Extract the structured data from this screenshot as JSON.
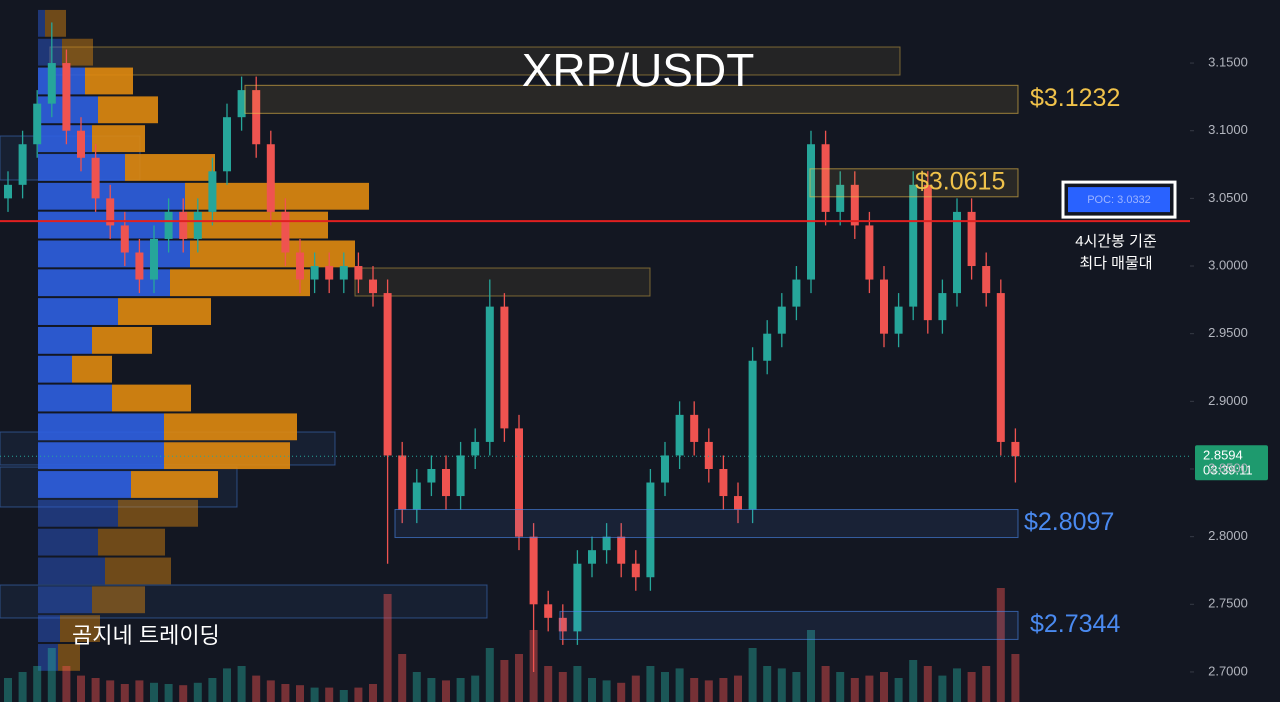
{
  "chart_data": {
    "type": "candlestick",
    "title": "XRP/USDT",
    "watermark": "곰지네 트레이딩",
    "up_color": "#26a69a",
    "down_color": "#ef5350",
    "ylim": [
      2.6778,
      3.1966
    ],
    "yticks": [
      {
        "value": 3.15,
        "label": "3.1500"
      },
      {
        "value": 3.1,
        "label": "3.1000"
      },
      {
        "value": 3.05,
        "label": "3.0500"
      },
      {
        "value": 3.0,
        "label": "3.0000"
      },
      {
        "value": 2.95,
        "label": "2.9500"
      },
      {
        "value": 2.9,
        "label": "2.9000"
      },
      {
        "value": 2.85,
        "label": "2.8500"
      },
      {
        "value": 2.8,
        "label": "2.8000"
      },
      {
        "value": 2.75,
        "label": "2.7500"
      },
      {
        "value": 2.7,
        "label": "2.7000"
      }
    ],
    "candles": {
      "open": [
        3.05,
        3.06,
        3.09,
        3.12,
        3.15,
        3.1,
        3.08,
        3.05,
        3.03,
        3.01,
        2.99,
        3.02,
        3.04,
        3.02,
        3.04,
        3.07,
        3.11,
        3.13,
        3.09,
        3.04,
        3.01,
        2.99,
        3.0,
        2.99,
        3.0,
        2.99,
        2.98,
        2.86,
        2.82,
        2.84,
        2.85,
        2.83,
        2.86,
        2.87,
        2.97,
        2.88,
        2.8,
        2.75,
        2.74,
        2.73,
        2.78,
        2.79,
        2.8,
        2.78,
        2.77,
        2.84,
        2.86,
        2.89,
        2.87,
        2.85,
        2.83,
        2.82,
        2.93,
        2.95,
        2.97,
        2.99,
        3.09,
        3.04,
        3.06,
        3.03,
        2.99,
        2.95,
        2.97,
        3.06,
        2.96,
        2.98,
        3.04,
        3.0,
        2.98,
        2.87
      ],
      "high": [
        3.07,
        3.1,
        3.13,
        3.18,
        3.16,
        3.11,
        3.09,
        3.06,
        3.04,
        3.02,
        3.03,
        3.05,
        3.05,
        3.05,
        3.08,
        3.12,
        3.14,
        3.14,
        3.1,
        3.05,
        3.02,
        3.01,
        3.01,
        3.01,
        3.01,
        3.0,
        2.99,
        2.87,
        2.85,
        2.86,
        2.86,
        2.87,
        2.88,
        2.99,
        2.98,
        2.89,
        2.81,
        2.76,
        2.75,
        2.79,
        2.8,
        2.81,
        2.81,
        2.79,
        2.85,
        2.87,
        2.9,
        2.9,
        2.88,
        2.86,
        2.84,
        2.94,
        2.96,
        2.98,
        3.0,
        3.1,
        3.1,
        3.07,
        3.07,
        3.04,
        3.0,
        2.98,
        3.07,
        3.07,
        2.99,
        3.05,
        3.05,
        3.01,
        2.99,
        2.88
      ],
      "low": [
        3.04,
        3.05,
        3.08,
        3.11,
        3.09,
        3.07,
        3.04,
        3.02,
        3.0,
        2.98,
        2.98,
        3.01,
        3.01,
        3.01,
        3.03,
        3.06,
        3.1,
        3.08,
        3.03,
        3.0,
        2.98,
        2.98,
        2.98,
        2.98,
        2.98,
        2.97,
        2.78,
        2.81,
        2.81,
        2.83,
        2.82,
        2.82,
        2.85,
        2.86,
        2.87,
        2.79,
        2.7,
        2.73,
        2.72,
        2.72,
        2.77,
        2.78,
        2.77,
        2.76,
        2.76,
        2.83,
        2.85,
        2.86,
        2.84,
        2.82,
        2.81,
        2.81,
        2.92,
        2.94,
        2.96,
        2.98,
        3.03,
        3.03,
        3.02,
        2.98,
        2.94,
        2.94,
        2.96,
        2.95,
        2.95,
        2.97,
        2.99,
        2.97,
        2.86,
        2.84
      ],
      "close": [
        3.06,
        3.09,
        3.12,
        3.15,
        3.1,
        3.08,
        3.05,
        3.03,
        3.01,
        2.99,
        3.02,
        3.04,
        3.02,
        3.04,
        3.07,
        3.11,
        3.13,
        3.09,
        3.04,
        3.01,
        2.99,
        3.0,
        2.99,
        3.0,
        2.99,
        2.98,
        2.86,
        2.82,
        2.84,
        2.85,
        2.83,
        2.86,
        2.87,
        2.97,
        2.88,
        2.8,
        2.75,
        2.74,
        2.73,
        2.78,
        2.79,
        2.8,
        2.78,
        2.77,
        2.84,
        2.86,
        2.89,
        2.87,
        2.85,
        2.83,
        2.82,
        2.93,
        2.95,
        2.97,
        2.99,
        3.09,
        3.04,
        3.06,
        3.03,
        2.99,
        2.95,
        2.97,
        3.06,
        2.96,
        2.98,
        3.04,
        3.0,
        2.98,
        2.87,
        2.8594
      ],
      "volume": [
        20,
        25,
        30,
        45,
        30,
        22,
        20,
        18,
        15,
        18,
        16,
        15,
        14,
        16,
        20,
        28,
        30,
        22,
        18,
        15,
        14,
        12,
        12,
        10,
        12,
        15,
        90,
        40,
        25,
        20,
        18,
        20,
        22,
        45,
        35,
        40,
        60,
        30,
        25,
        30,
        20,
        18,
        16,
        22,
        30,
        25,
        28,
        20,
        18,
        20,
        22,
        45,
        30,
        28,
        25,
        60,
        30,
        25,
        20,
        22,
        25,
        20,
        35,
        30,
        22,
        28,
        25,
        30,
        95,
        40
      ]
    },
    "volume_profile": {
      "bins": [
        3.19,
        3.1687,
        3.1474,
        3.1261,
        3.1048,
        3.0835,
        3.0622,
        3.0409,
        3.0196,
        2.9983,
        2.977,
        2.9557,
        2.9344,
        2.9131,
        2.8918,
        2.8705,
        2.8492,
        2.8279,
        2.8066,
        2.7853,
        2.764,
        2.7427,
        2.7214,
        2.7001
      ],
      "buy": [
        7,
        24,
        47,
        60,
        54,
        87,
        147,
        147,
        152,
        132,
        80,
        54,
        34,
        74,
        126,
        126,
        93,
        80,
        60,
        67,
        54,
        22,
        20
      ],
      "sell": [
        21,
        31,
        48,
        60,
        53,
        90,
        184,
        143,
        165,
        140,
        93,
        60,
        40,
        79,
        133,
        126,
        87,
        80,
        67,
        66,
        53,
        40,
        22
      ],
      "buy_color": "#2f5fe0",
      "sell_color": "#e08a10"
    },
    "levels": [
      {
        "value": 3.1232,
        "label": "$3.1232",
        "color": "#f0c24a"
      },
      {
        "value": 3.0615,
        "label": "$3.0615",
        "color": "#f0c24a"
      },
      {
        "value": 2.8097,
        "label": "$2.8097",
        "color": "#4a8af0"
      },
      {
        "value": 2.7344,
        "label": "$2.7344",
        "color": "#4a8af0"
      }
    ],
    "poc": {
      "value": 3.0332,
      "label": "POC: 3.0332",
      "color": "#e02020"
    },
    "poc_note": [
      "4시간봉 기준",
      "최다 매물대"
    ],
    "current_price": 2.8594,
    "countdown": "03:39:11"
  }
}
